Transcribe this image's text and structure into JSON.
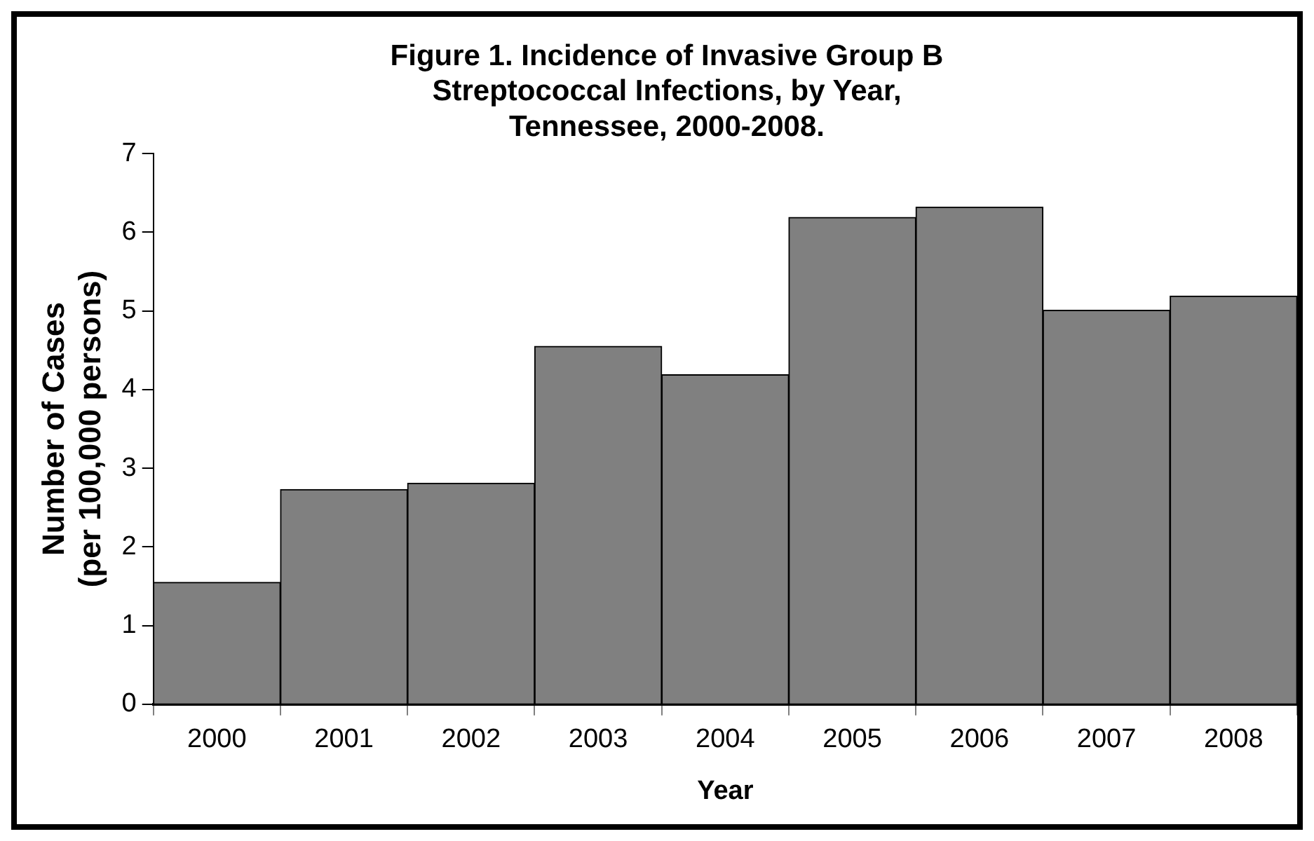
{
  "chart_data": {
    "type": "bar",
    "title": "Figure 1. Incidence of Invasive Group B\nStreptococcal Infections, by Year,\nTennessee, 2000-2008.",
    "xlabel": "Year",
    "ylabel": "Number of Cases\n(per 100,000 persons)",
    "categories": [
      "2000",
      "2001",
      "2002",
      "2003",
      "2004",
      "2005",
      "2006",
      "2007",
      "2008"
    ],
    "values": [
      1.55,
      2.73,
      2.81,
      4.55,
      4.19,
      6.19,
      6.32,
      5.01,
      5.19
    ],
    "color": "#808080",
    "ylim": [
      0,
      7
    ],
    "yticks": [
      0,
      1,
      2,
      3,
      4,
      5,
      6,
      7
    ]
  }
}
